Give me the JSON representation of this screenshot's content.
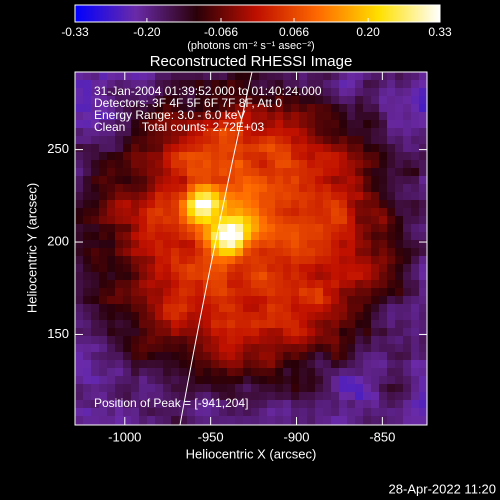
{
  "chart_data": {
    "type": "image",
    "title": "Reconstructed RHESSI Image",
    "xlabel": "Heliocentric X (arcsec)",
    "ylabel": "Heliocentric Y (arcsec)",
    "xlim": [
      -1029,
      -824
    ],
    "ylim": [
      101,
      292
    ],
    "xticks": [
      -1000,
      -950,
      -900,
      -850
    ],
    "yticks": [
      150,
      200,
      250
    ],
    "colorbar": {
      "label": "(photons cm⁻² s⁻¹ asec⁻²)",
      "lim": [
        -0.33,
        0.33
      ],
      "ticks": [
        -0.33,
        {
          "value": -0.2,
          "label": "-0.20"
        },
        -0.066,
        0.066,
        {
          "value": 0.2,
          "label": "0.20"
        },
        0.33
      ],
      "colormap": [
        "#0000ff",
        "#6a2aa8",
        "#2a0008",
        "#c01000",
        "#ff6a00",
        "#ffe000",
        "#ffffff"
      ]
    },
    "annotations": [
      "31-Jan-2004 01:39:52.000 to 01:40:24.000",
      "Detectors: 3F 4F 5F 6F 7F 8F, Att 0",
      "Energy Range: 3.0 - 6.0 keV",
      "Clean     Total counts: 2.72E+03"
    ],
    "peak_label": "Position of Peak = [-941,204]",
    "timestamp": "28-Apr-2022 11:20"
  }
}
